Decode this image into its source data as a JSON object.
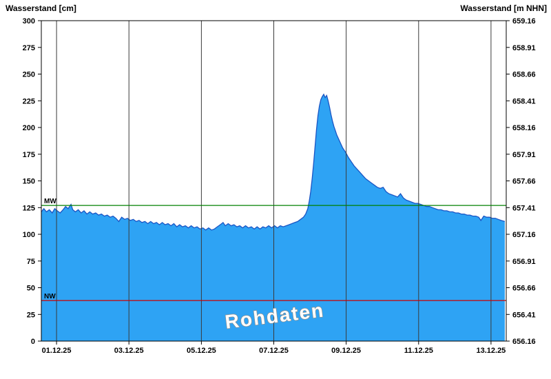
{
  "page": {
    "title_left": "Wasserstand [cm]",
    "title_right": "Wasserstand [m NHN]"
  },
  "chart_data": {
    "type": "area",
    "title": "",
    "ylabel_left": "Wasserstand [cm]",
    "ylabel_right": "Wasserstand [m NHN]",
    "watermark": "Rohdaten",
    "grid": "vertical-only",
    "legend": "none",
    "x_axis": {
      "min_day": 0.58,
      "max_day": 13.42,
      "tick_days": [
        1,
        3,
        5,
        7,
        9,
        11,
        13
      ],
      "tick_labels": [
        "01.12.25",
        "03.12.25",
        "05.12.25",
        "07.12.25",
        "09.12.25",
        "11.12.25",
        "13.12.25"
      ]
    },
    "y_left": {
      "min": 0,
      "max": 300,
      "step": 25,
      "tick_labels": [
        "0",
        "25",
        "50",
        "75",
        "100",
        "125",
        "150",
        "175",
        "200",
        "225",
        "250",
        "275",
        "300"
      ]
    },
    "y_right": {
      "labels": [
        "659.16",
        "658.91",
        "658.66",
        "658.41",
        "658.16",
        "657.91",
        "657.66",
        "657.41",
        "657.16",
        "656.91",
        "656.66",
        "656.41",
        "656.16"
      ]
    },
    "reference_lines": [
      {
        "name": "MW",
        "value": 127,
        "color": "#008000"
      },
      {
        "name": "NW",
        "value": 38,
        "color": "#cc0000"
      }
    ],
    "series": [
      {
        "name": "Wasserstand Rohdaten",
        "color_fill": "#2EA3F4",
        "color_line": "#1B55C4",
        "points": [
          [
            0.58,
            121
          ],
          [
            0.65,
            124
          ],
          [
            0.72,
            121
          ],
          [
            0.8,
            123
          ],
          [
            0.88,
            120
          ],
          [
            0.95,
            124
          ],
          [
            1.02,
            122
          ],
          [
            1.1,
            120
          ],
          [
            1.18,
            123
          ],
          [
            1.25,
            126
          ],
          [
            1.32,
            124
          ],
          [
            1.4,
            128
          ],
          [
            1.45,
            123
          ],
          [
            1.52,
            121
          ],
          [
            1.6,
            123
          ],
          [
            1.68,
            120
          ],
          [
            1.76,
            122
          ],
          [
            1.84,
            119
          ],
          [
            1.92,
            121
          ],
          [
            2.0,
            119
          ],
          [
            2.08,
            120
          ],
          [
            2.16,
            118
          ],
          [
            2.24,
            119
          ],
          [
            2.32,
            117
          ],
          [
            2.4,
            118
          ],
          [
            2.48,
            116
          ],
          [
            2.56,
            117
          ],
          [
            2.64,
            115
          ],
          [
            2.72,
            112
          ],
          [
            2.8,
            116
          ],
          [
            2.88,
            114
          ],
          [
            2.96,
            115
          ],
          [
            3.04,
            113
          ],
          [
            3.12,
            114
          ],
          [
            3.2,
            112
          ],
          [
            3.28,
            113
          ],
          [
            3.36,
            111
          ],
          [
            3.44,
            112
          ],
          [
            3.52,
            110
          ],
          [
            3.6,
            112
          ],
          [
            3.68,
            110
          ],
          [
            3.76,
            111
          ],
          [
            3.84,
            109
          ],
          [
            3.92,
            111
          ],
          [
            4.0,
            109
          ],
          [
            4.08,
            110
          ],
          [
            4.16,
            108
          ],
          [
            4.24,
            110
          ],
          [
            4.32,
            107
          ],
          [
            4.4,
            109
          ],
          [
            4.48,
            107
          ],
          [
            4.56,
            108
          ],
          [
            4.64,
            106
          ],
          [
            4.72,
            108
          ],
          [
            4.8,
            106
          ],
          [
            4.88,
            107
          ],
          [
            4.96,
            105
          ],
          [
            5.04,
            106
          ],
          [
            5.12,
            104
          ],
          [
            5.2,
            106
          ],
          [
            5.28,
            104
          ],
          [
            5.36,
            105
          ],
          [
            5.44,
            107
          ],
          [
            5.52,
            109
          ],
          [
            5.6,
            111
          ],
          [
            5.66,
            108
          ],
          [
            5.74,
            110
          ],
          [
            5.82,
            108
          ],
          [
            5.9,
            109
          ],
          [
            5.98,
            107
          ],
          [
            6.06,
            108
          ],
          [
            6.14,
            106
          ],
          [
            6.22,
            108
          ],
          [
            6.3,
            106
          ],
          [
            6.38,
            107
          ],
          [
            6.46,
            105
          ],
          [
            6.54,
            107
          ],
          [
            6.62,
            105
          ],
          [
            6.7,
            107
          ],
          [
            6.78,
            106
          ],
          [
            6.86,
            108
          ],
          [
            6.94,
            106
          ],
          [
            7.02,
            108
          ],
          [
            7.1,
            106
          ],
          [
            7.18,
            108
          ],
          [
            7.26,
            107
          ],
          [
            7.34,
            108
          ],
          [
            7.42,
            109
          ],
          [
            7.5,
            110
          ],
          [
            7.58,
            111
          ],
          [
            7.66,
            112
          ],
          [
            7.74,
            114
          ],
          [
            7.82,
            116
          ],
          [
            7.88,
            119
          ],
          [
            7.94,
            124
          ],
          [
            7.98,
            131
          ],
          [
            8.02,
            140
          ],
          [
            8.06,
            152
          ],
          [
            8.1,
            166
          ],
          [
            8.14,
            182
          ],
          [
            8.18,
            198
          ],
          [
            8.22,
            211
          ],
          [
            8.26,
            220
          ],
          [
            8.3,
            226
          ],
          [
            8.34,
            229
          ],
          [
            8.38,
            231
          ],
          [
            8.42,
            228
          ],
          [
            8.46,
            230
          ],
          [
            8.5,
            225
          ],
          [
            8.54,
            219
          ],
          [
            8.58,
            212
          ],
          [
            8.62,
            206
          ],
          [
            8.66,
            201
          ],
          [
            8.7,
            197
          ],
          [
            8.74,
            193
          ],
          [
            8.78,
            190
          ],
          [
            8.82,
            187
          ],
          [
            8.86,
            184
          ],
          [
            8.9,
            181
          ],
          [
            8.94,
            179
          ],
          [
            8.98,
            177
          ],
          [
            9.06,
            172
          ],
          [
            9.14,
            168
          ],
          [
            9.22,
            164
          ],
          [
            9.3,
            161
          ],
          [
            9.38,
            158
          ],
          [
            9.46,
            155
          ],
          [
            9.54,
            152
          ],
          [
            9.62,
            150
          ],
          [
            9.7,
            148
          ],
          [
            9.78,
            146
          ],
          [
            9.86,
            144
          ],
          [
            9.94,
            143
          ],
          [
            10.02,
            144
          ],
          [
            10.1,
            140
          ],
          [
            10.18,
            138
          ],
          [
            10.26,
            137
          ],
          [
            10.34,
            136
          ],
          [
            10.42,
            135
          ],
          [
            10.5,
            138
          ],
          [
            10.58,
            134
          ],
          [
            10.66,
            132
          ],
          [
            10.74,
            131
          ],
          [
            10.82,
            130
          ],
          [
            10.9,
            129
          ],
          [
            10.98,
            129
          ],
          [
            11.06,
            128
          ],
          [
            11.14,
            127
          ],
          [
            11.22,
            126
          ],
          [
            11.3,
            126
          ],
          [
            11.38,
            125
          ],
          [
            11.46,
            124
          ],
          [
            11.54,
            123
          ],
          [
            11.62,
            123
          ],
          [
            11.7,
            122
          ],
          [
            11.78,
            122
          ],
          [
            11.86,
            121
          ],
          [
            11.94,
            121
          ],
          [
            12.02,
            120
          ],
          [
            12.1,
            120
          ],
          [
            12.18,
            119
          ],
          [
            12.26,
            119
          ],
          [
            12.34,
            118
          ],
          [
            12.42,
            118
          ],
          [
            12.5,
            117
          ],
          [
            12.58,
            117
          ],
          [
            12.66,
            116
          ],
          [
            12.72,
            113
          ],
          [
            12.8,
            117
          ],
          [
            12.88,
            116
          ],
          [
            12.96,
            116
          ],
          [
            13.04,
            115
          ],
          [
            13.12,
            115
          ],
          [
            13.2,
            114
          ],
          [
            13.28,
            113
          ],
          [
            13.38,
            112
          ]
        ]
      }
    ]
  }
}
